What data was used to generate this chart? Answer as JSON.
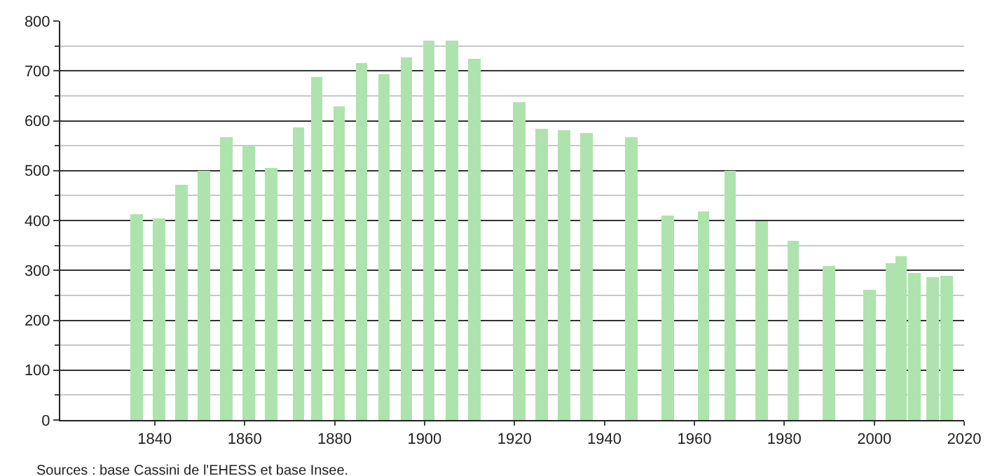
{
  "chart_data": {
    "type": "bar",
    "x": [
      1836,
      1841,
      1846,
      1851,
      1856,
      1861,
      1866,
      1872,
      1876,
      1881,
      1886,
      1891,
      1896,
      1901,
      1906,
      1911,
      1921,
      1926,
      1931,
      1936,
      1946,
      1954,
      1962,
      1968,
      1975,
      1982,
      1990,
      1999,
      2004,
      2006,
      2009,
      2013,
      2016
    ],
    "values": [
      413,
      405,
      472,
      499,
      568,
      549,
      506,
      588,
      688,
      630,
      717,
      693,
      727,
      762,
      760,
      724,
      638,
      583,
      580,
      576,
      566,
      409,
      417,
      501,
      400,
      359,
      310,
      260,
      313,
      329,
      296,
      285,
      290
    ],
    "color": "#aee3ae",
    "xlim": [
      1819,
      2020
    ],
    "xticks": [
      1840,
      1860,
      1880,
      1900,
      1920,
      1940,
      1960,
      1980,
      2000,
      2020
    ],
    "ylim": [
      0,
      800
    ],
    "yticks": [
      0,
      100,
      200,
      300,
      400,
      500,
      600,
      700,
      800
    ],
    "grid": "y",
    "annotations": [
      "Sources : base Cassini de l'EHESS et base Insee."
    ]
  }
}
